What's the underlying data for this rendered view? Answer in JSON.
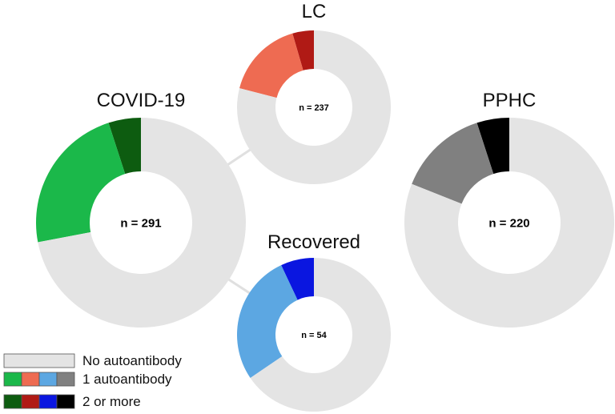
{
  "chart_data": {
    "type": "donut",
    "charts": [
      {
        "title": "COVID-19",
        "n_label": "n = 291",
        "slices": [
          {
            "category": "No autoantibody",
            "value": 72,
            "color": "#e4e4e4"
          },
          {
            "category": "1 autoantibody",
            "value": 23,
            "color": "#1bb84a"
          },
          {
            "category": "2 or more",
            "value": 5,
            "color": "#0d5c10"
          }
        ]
      },
      {
        "title": "LC",
        "n_label": "n = 237",
        "slices": [
          {
            "category": "No autoantibody",
            "value": 79,
            "color": "#e4e4e4"
          },
          {
            "category": "1 autoantibody",
            "value": 16.5,
            "color": "#ee6b52"
          },
          {
            "category": "2 or more",
            "value": 4.5,
            "color": "#b01a15"
          }
        ]
      },
      {
        "title": "Recovered",
        "n_label": "n = 54",
        "slices": [
          {
            "category": "No autoantibody",
            "value": 65.5,
            "color": "#e4e4e4"
          },
          {
            "category": "1 autoantibody",
            "value": 27.5,
            "color": "#5ca7e2"
          },
          {
            "category": "2 or more",
            "value": 7,
            "color": "#0a16e0"
          }
        ]
      },
      {
        "title": "PPHC",
        "n_label": "n = 220",
        "slices": [
          {
            "category": "No autoantibody",
            "value": 81,
            "color": "#e4e4e4"
          },
          {
            "category": "1 autoantibody",
            "value": 14,
            "color": "#808080"
          },
          {
            "category": "2 or more",
            "value": 5,
            "color": "#000000"
          }
        ]
      }
    ],
    "legend": {
      "position": "bottom-left",
      "entries": [
        {
          "label": "No autoantibody",
          "colors": [
            "#e4e4e4"
          ]
        },
        {
          "label": "1 autoantibody",
          "colors": [
            "#1bb84a",
            "#ee6b52",
            "#5ca7e2",
            "#808080"
          ]
        },
        {
          "label": "2 or more",
          "colors": [
            "#0d5c10",
            "#b01a15",
            "#0a16e0",
            "#000000"
          ]
        }
      ]
    },
    "connector_color": "#e0e0e0"
  }
}
